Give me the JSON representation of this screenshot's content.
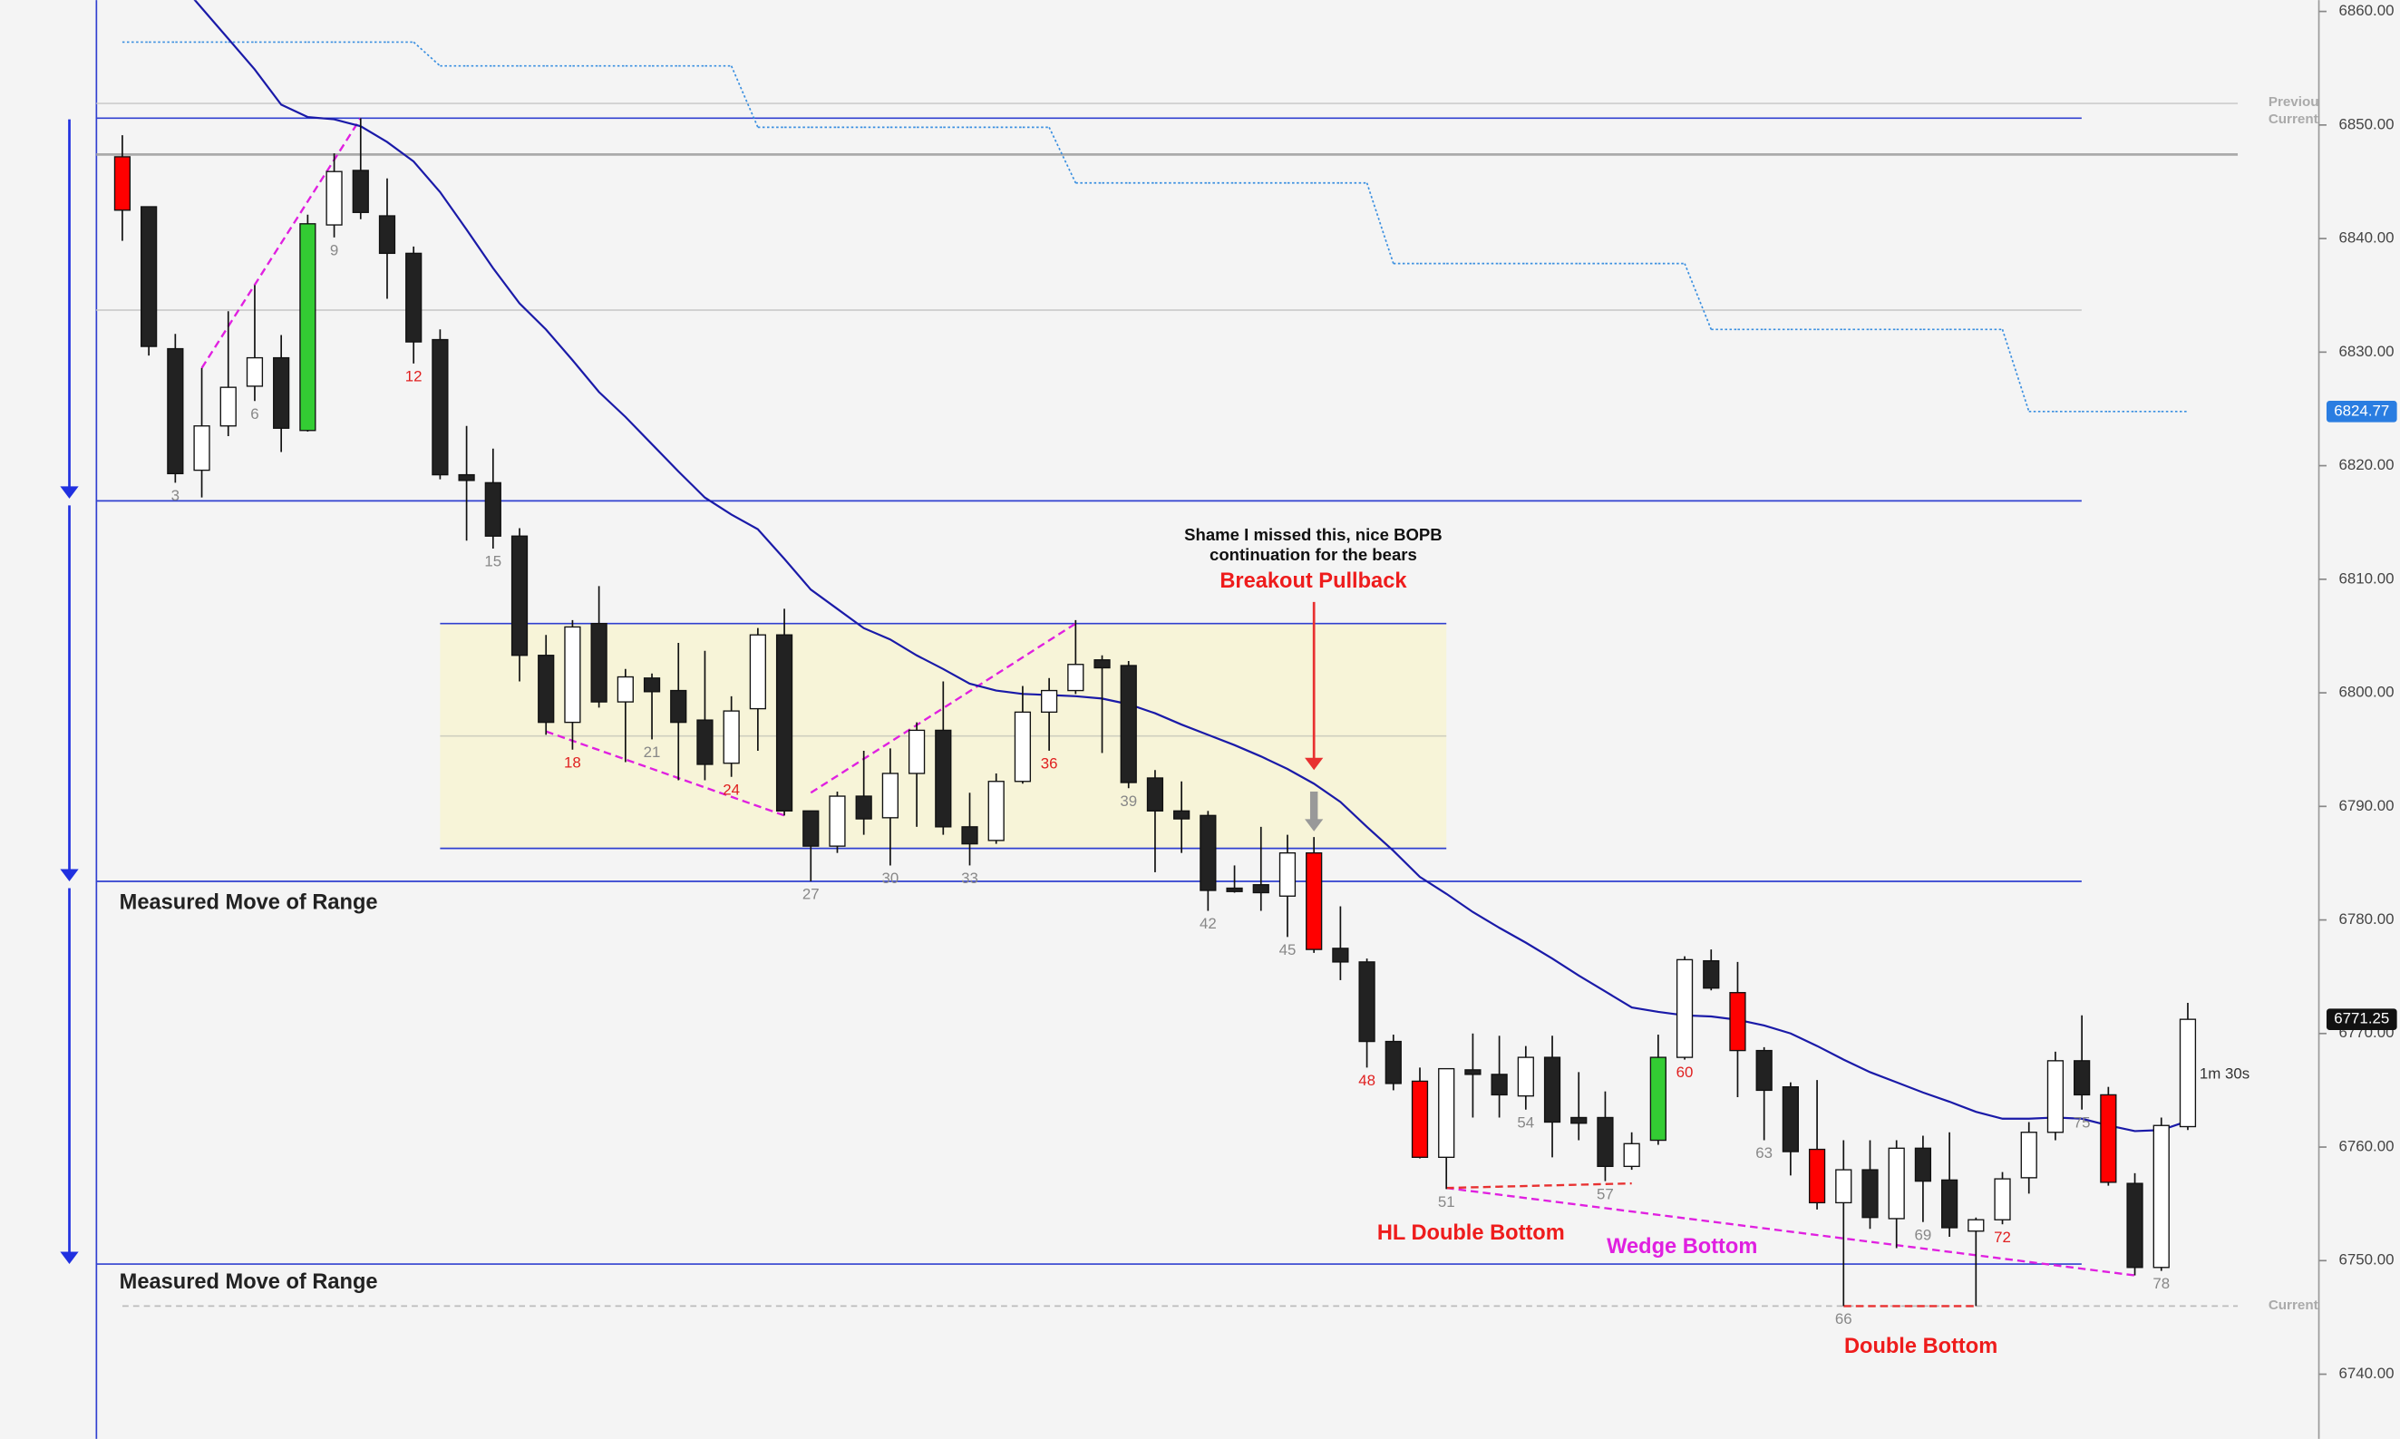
{
  "chart_data": {
    "type": "candlestick",
    "x": [
      1,
      2,
      3,
      4,
      5,
      6,
      7,
      8,
      9,
      10,
      11,
      12,
      13,
      14,
      15,
      16,
      17,
      18,
      19,
      20,
      21,
      22,
      23,
      24,
      25,
      26,
      27,
      28,
      29,
      30,
      31,
      32,
      33,
      34,
      35,
      36,
      37,
      38,
      39,
      40,
      41,
      42,
      43,
      44,
      45,
      46,
      47,
      48,
      49,
      50,
      51,
      52,
      53,
      54,
      55,
      56,
      57,
      58,
      59,
      60,
      61,
      62,
      63,
      64,
      65,
      66,
      67,
      68,
      69,
      70,
      71,
      72,
      73,
      74,
      75,
      76,
      77,
      78,
      79
    ],
    "open": [
      6847.2,
      6842.8,
      6830.3,
      6819.6,
      6823.5,
      6827.0,
      6829.5,
      6823.1,
      6841.2,
      6846.0,
      6842.0,
      6838.7,
      6831.1,
      6819.2,
      6818.5,
      6813.8,
      6803.3,
      6797.4,
      6806.1,
      6799.2,
      6801.3,
      6800.2,
      6797.6,
      6793.8,
      6798.6,
      6805.1,
      6789.6,
      6786.5,
      6790.9,
      6789.0,
      6792.9,
      6796.7,
      6788.2,
      6787.0,
      6792.2,
      6798.3,
      6800.2,
      6802.9,
      6802.4,
      6792.5,
      6789.6,
      6789.2,
      6782.8,
      6783.1,
      6782.1,
      6785.9,
      6777.5,
      6776.3,
      6769.3,
      6765.8,
      6759.1,
      6766.8,
      6766.4,
      6764.5,
      6767.9,
      6762.6,
      6762.6,
      6758.3,
      6760.6,
      6767.9,
      6776.4,
      6773.6,
      6768.5,
      6765.3,
      6759.8,
      6755.1,
      6758.0,
      6753.7,
      6759.9,
      6757.1,
      6752.6,
      6753.6,
      6757.3,
      6761.3,
      6767.6,
      6764.6,
      6756.8,
      6749.4,
      6761.8
    ],
    "high": [
      6849.1,
      6842.8,
      6831.6,
      6828.6,
      6833.6,
      6835.9,
      6831.5,
      6842.1,
      6847.5,
      6850.6,
      6845.3,
      6839.3,
      6832.0,
      6823.5,
      6821.5,
      6814.5,
      6805.1,
      6806.4,
      6809.4,
      6802.1,
      6801.7,
      6804.4,
      6803.7,
      6799.7,
      6805.7,
      6807.4,
      6789.6,
      6791.3,
      6794.9,
      6795.1,
      6797.4,
      6801.0,
      6791.2,
      6792.9,
      6800.6,
      6801.3,
      6806.4,
      6803.3,
      6802.8,
      6793.2,
      6792.2,
      6789.6,
      6784.8,
      6788.2,
      6787.5,
      6787.3,
      6781.2,
      6776.6,
      6769.9,
      6767.0,
      6766.9,
      6770.0,
      6769.8,
      6768.9,
      6769.8,
      6766.6,
      6764.9,
      6761.3,
      6769.9,
      6776.8,
      6777.4,
      6776.3,
      6768.8,
      6765.7,
      6765.9,
      6760.6,
      6760.6,
      6760.6,
      6761.0,
      6761.3,
      6753.8,
      6757.8,
      6762.2,
      6768.4,
      6771.6,
      6765.3,
      6757.7,
      6762.6,
      6772.7
    ],
    "low": [
      6839.8,
      6829.7,
      6818.5,
      6817.2,
      6822.6,
      6825.7,
      6821.2,
      6823.0,
      6840.1,
      6841.7,
      6834.7,
      6829.0,
      6818.8,
      6813.4,
      6812.7,
      6801.0,
      6796.3,
      6795.0,
      6798.7,
      6793.9,
      6795.9,
      6792.3,
      6792.3,
      6792.6,
      6794.9,
      6789.2,
      6783.4,
      6785.9,
      6787.5,
      6784.8,
      6788.2,
      6787.5,
      6784.8,
      6786.7,
      6792.0,
      6794.9,
      6799.9,
      6794.7,
      6791.6,
      6784.2,
      6785.9,
      6780.8,
      6782.4,
      6780.8,
      6778.5,
      6777.1,
      6774.7,
      6767.0,
      6765.0,
      6759.0,
      6756.3,
      6762.6,
      6762.6,
      6763.3,
      6759.1,
      6760.6,
      6757.0,
      6758.0,
      6760.2,
      6767.7,
      6773.8,
      6764.4,
      6760.6,
      6757.5,
      6754.5,
      6746.0,
      6752.8,
      6751.1,
      6753.4,
      6752.1,
      6746.0,
      6753.2,
      6755.9,
      6760.6,
      6763.3,
      6756.6,
      6748.7,
      6749.1,
      6761.5
    ],
    "close": [
      6842.5,
      6830.5,
      6819.3,
      6823.5,
      6826.9,
      6829.5,
      6823.3,
      6841.3,
      6845.9,
      6842.3,
      6838.7,
      6830.9,
      6819.2,
      6818.7,
      6813.8,
      6803.3,
      6797.4,
      6805.8,
      6799.2,
      6801.4,
      6800.1,
      6797.4,
      6793.7,
      6798.4,
      6805.1,
      6789.6,
      6786.5,
      6790.9,
      6788.9,
      6792.9,
      6796.7,
      6788.2,
      6786.7,
      6792.2,
      6798.3,
      6800.2,
      6802.5,
      6802.2,
      6792.1,
      6789.6,
      6788.9,
      6782.6,
      6782.5,
      6782.4,
      6785.9,
      6777.4,
      6776.3,
      6769.3,
      6765.6,
      6759.1,
      6766.9,
      6766.4,
      6764.6,
      6767.9,
      6762.2,
      6762.1,
      6758.3,
      6760.3,
      6767.9,
      6776.5,
      6774.0,
      6768.5,
      6765.0,
      6759.6,
      6755.1,
      6758.0,
      6753.8,
      6759.9,
      6757.0,
      6752.9,
      6753.6,
      6757.2,
      6761.3,
      6767.6,
      6764.6,
      6756.9,
      6749.4,
      6761.9,
      6771.25
    ],
    "colors": [
      "#f00",
      "#222",
      "#222",
      "#fff",
      "#fff",
      "#fff",
      "#222",
      "#3c3",
      "#fff",
      "#222",
      "#222",
      "#222",
      "#222",
      "#222",
      "#222",
      "#222",
      "#222",
      "#fff",
      "#222",
      "#fff",
      "#222",
      "#222",
      "#222",
      "#fff",
      "#fff",
      "#222",
      "#222",
      "#fff",
      "#222",
      "#fff",
      "#fff",
      "#222",
      "#222",
      "#fff",
      "#fff",
      "#fff",
      "#fff",
      "#222",
      "#222",
      "#222",
      "#222",
      "#222",
      "#222",
      "#222",
      "#fff",
      "#f00",
      "#222",
      "#222",
      "#222",
      "#f00",
      "#fff",
      "#222",
      "#222",
      "#fff",
      "#222",
      "#222",
      "#222",
      "#fff",
      "#3c3",
      "#fff",
      "#222",
      "#f00",
      "#222",
      "#222",
      "#f00",
      "#fff",
      "#222",
      "#fff",
      "#222",
      "#222",
      "#fff",
      "#fff",
      "#fff",
      "#fff",
      "#222",
      "#f00",
      "#222",
      "#fff",
      "#fff"
    ],
    "ema": {
      "color": "#1a1aa8",
      "values": [
        6868.4,
        6865.7,
        6863.0,
        6860.3,
        6857.6,
        6854.9,
        6851.8,
        6850.7,
        6850.5,
        6849.9,
        6848.5,
        6846.8,
        6844.1,
        6840.8,
        6837.4,
        6834.3,
        6832.0,
        6829.3,
        6826.5,
        6824.3,
        6821.9,
        6819.5,
        6817.2,
        6815.7,
        6814.4,
        6811.8,
        6809.1,
        6807.4,
        6805.7,
        6804.7,
        6803.3,
        6802.1,
        6800.8,
        6800.2,
        6799.9,
        6799.8,
        6799.7,
        6799.5,
        6799.0,
        6798.2,
        6797.2,
        6796.3,
        6795.4,
        6794.4,
        6793.3,
        6792.0,
        6790.4,
        6788.2,
        6786.1,
        6783.8,
        6782.3,
        6780.7,
        6779.3,
        6778.0,
        6776.6,
        6775.1,
        6773.7,
        6772.3,
        6771.9,
        6771.6,
        6771.5,
        6771.2,
        6770.7,
        6770.0,
        6768.9,
        6767.7,
        6766.6,
        6765.7,
        6764.8,
        6764.0,
        6763.1,
        6762.5,
        6762.5,
        6762.6,
        6762.5,
        6761.9,
        6761.4,
        6761.5,
        6762.3
      ]
    },
    "stop": {
      "color": "#3a8fe0",
      "values": [
        6857.3,
        6857.3,
        6857.3,
        6857.3,
        6857.3,
        6857.3,
        6857.3,
        6857.3,
        6857.3,
        6857.3,
        6857.3,
        6857.3,
        6855.2,
        6855.2,
        6855.2,
        6855.2,
        6855.2,
        6855.2,
        6855.2,
        6855.2,
        6855.2,
        6855.2,
        6855.2,
        6855.2,
        6849.8,
        6849.8,
        6849.8,
        6849.8,
        6849.8,
        6849.8,
        6849.8,
        6849.8,
        6849.8,
        6849.8,
        6849.8,
        6849.8,
        6844.9,
        6844.9,
        6844.9,
        6844.9,
        6844.9,
        6844.9,
        6844.9,
        6844.9,
        6844.9,
        6844.9,
        6844.9,
        6844.9,
        6837.8,
        6837.8,
        6837.8,
        6837.8,
        6837.8,
        6837.8,
        6837.8,
        6837.8,
        6837.8,
        6837.8,
        6837.8,
        6837.8,
        6832.0,
        6832.0,
        6832.0,
        6832.0,
        6832.0,
        6832.0,
        6832.0,
        6832.0,
        6832.0,
        6832.0,
        6832.0,
        6832.0,
        6824.77,
        6824.77,
        6824.77,
        6824.77,
        6824.77,
        6824.77,
        null
      ]
    },
    "xlim": [
      -3.62,
      83.95
    ],
    "ylim": [
      6734.3,
      6861.0
    ],
    "xticks": [
      3,
      6,
      9,
      12,
      15,
      18,
      21,
      24,
      27,
      30,
      33,
      36,
      39,
      42,
      45,
      48,
      51,
      54,
      57,
      60,
      63,
      66,
      69,
      72,
      75,
      78
    ],
    "xtick_colors": [
      "#888",
      "#888",
      "#888",
      "#e02020",
      "#888",
      "#e02020",
      "#888",
      "#e02020",
      "#888",
      "#888",
      "#888",
      "#e02020",
      "#888",
      "#888",
      "#888",
      "#e02020",
      "#888",
      "#888",
      "#888",
      "#e02020",
      "#888",
      "#888",
      "#888",
      "#e02020",
      "#888",
      "#888"
    ],
    "yticks": [
      {
        "value": 6740,
        "label": "6740.00"
      },
      {
        "value": 6750,
        "label": "6750.00"
      },
      {
        "value": 6760,
        "label": "6760.00"
      },
      {
        "value": 6770,
        "label": "6770.00"
      },
      {
        "value": 6780,
        "label": "6780.00"
      },
      {
        "value": 6790,
        "label": "6790.00"
      },
      {
        "value": 6800,
        "label": "6800.00"
      },
      {
        "value": 6810,
        "label": "6810.00"
      },
      {
        "value": 6820,
        "label": "6820.00"
      },
      {
        "value": 6830,
        "label": "6830.00"
      },
      {
        "value": 6840,
        "label": "6840.00"
      },
      {
        "value": 6850,
        "label": "6850.00"
      },
      {
        "value": 6860,
        "label": "6860.00"
      }
    ],
    "price_markers": [
      {
        "value": 6824.77,
        "label": "6824.77",
        "color": "#2a7de1"
      },
      {
        "value": 6771.25,
        "label": "6771.25",
        "color": "#111111"
      }
    ],
    "levels": [
      {
        "value": 6851.9,
        "color": "#cccccc",
        "style": "solid",
        "extent": "long"
      },
      {
        "value": 6850.6,
        "color": "#3040d0",
        "style": "solid",
        "extent": "short"
      },
      {
        "value": 6847.4,
        "color": "#aaaaaa",
        "style": "solid",
        "extent": "long"
      },
      {
        "value": 6833.7,
        "color": "#cccccc",
        "style": "solid",
        "extent": "short"
      },
      {
        "value": 6816.9,
        "color": "#3040d0",
        "style": "solid",
        "extent": "short"
      },
      {
        "value": 6783.4,
        "color": "#3040d0",
        "style": "solid",
        "extent": "short"
      },
      {
        "value": 6749.7,
        "color": "#3040d0",
        "style": "solid",
        "extent": "short"
      },
      {
        "value": 6746.0,
        "color": "#bbbbbb",
        "style": "dashed",
        "extent": "long"
      }
    ],
    "range_box": {
      "x": [
        13,
        51
      ],
      "top": 6806.1,
      "bottom": 6786.3,
      "mid": 6796.2,
      "fill": "#f7f4d8",
      "edge": "#3040d0"
    },
    "trendlines": [
      {
        "from": [
          4,
          6828.6
        ],
        "to": [
          10,
          6850.6
        ],
        "color": "#e020e0"
      },
      {
        "from": [
          17,
          6796.6
        ],
        "to": [
          26,
          6789.2
        ],
        "color": "#e020e0"
      },
      {
        "from": [
          27,
          6791.2
        ],
        "to": [
          37,
          6806.1
        ],
        "color": "#e020e0"
      },
      {
        "from": [
          51,
          6756.4
        ],
        "to": [
          77,
          6748.7
        ],
        "color": "#e020e0"
      },
      {
        "from": [
          51,
          6756.4
        ],
        "to": [
          58,
          6756.8
        ],
        "color": "#e83030"
      },
      {
        "from": [
          66,
          6746.0
        ],
        "to": [
          71,
          6746.0
        ],
        "color": "#e83030"
      }
    ],
    "arrows": [
      {
        "from": [
          46,
          6808.0
        ],
        "to": [
          46,
          6793.2
        ],
        "color": "#e83030"
      },
      {
        "from": [
          46,
          6791.3
        ],
        "to": [
          46,
          6787.8
        ],
        "color": "#999999"
      },
      {
        "from": [
          -1,
          6850.5
        ],
        "to": [
          -1,
          6817.1
        ],
        "color": "#2030e0"
      },
      {
        "from": [
          -1,
          6816.5
        ],
        "to": [
          -1,
          6783.4
        ],
        "color": "#2030e0"
      },
      {
        "from": [
          -1,
          6782.8
        ],
        "to": [
          -1,
          6749.7
        ],
        "color": "#2030e0"
      }
    ],
    "annotations": [
      {
        "text": "Shame I missed this, nice BOPB",
        "color": "#111111"
      },
      {
        "text": "continuation for the bears",
        "color": "#111111"
      },
      {
        "text": "Breakout Pullback",
        "color": "#ee1c1c"
      },
      {
        "text": "Measured Move of Range",
        "color": "#222222"
      },
      {
        "text": "Measured Move of Range",
        "color": "#222222"
      },
      {
        "text": "HL Double Bottom",
        "color": "#ee1c1c"
      },
      {
        "text": "Wedge Bottom",
        "color": "#e020e0"
      },
      {
        "text": "Double Bottom",
        "color": "#ee1c1c"
      },
      {
        "text": "1m 30s",
        "color": "#333333"
      },
      {
        "text": "Previous",
        "color": "#aaaaaa"
      },
      {
        "text": "Current D",
        "color": "#aaaaaa"
      },
      {
        "text": "Current D",
        "color": "#aaaaaa"
      }
    ]
  }
}
